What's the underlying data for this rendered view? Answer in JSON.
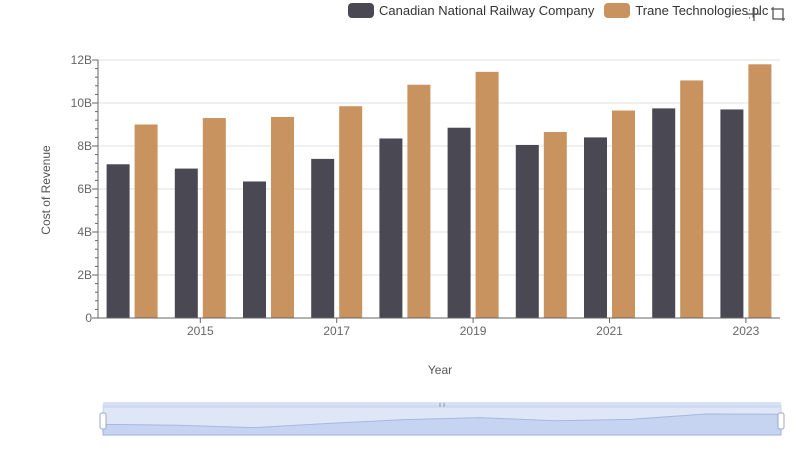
{
  "legend": [
    {
      "name": "Canadian National Railway Company",
      "color": "#4a4953"
    },
    {
      "name": "Trane Technologies plc",
      "color": "#c8935f"
    }
  ],
  "toolbox": {
    "zoom_icon": "zoom-icon",
    "restore_icon": "restore-icon"
  },
  "chart_data": {
    "type": "bar",
    "xlabel": "Year",
    "ylabel": "Cost of Revenue",
    "x": [
      2014,
      2015,
      2016,
      2017,
      2018,
      2019,
      2020,
      2021,
      2022,
      2023
    ],
    "x_tick_labels": [
      "2015",
      "2017",
      "2019",
      "2021",
      "2023"
    ],
    "y_tick_labels": [
      "0",
      "2B",
      "4B",
      "6B",
      "8B",
      "10B",
      "12B"
    ],
    "ylim": [
      0,
      12000000000
    ],
    "grid": true,
    "legend_position": "top-right",
    "series": [
      {
        "name": "Canadian National Railway Company",
        "color": "#4a4953",
        "values": [
          7150000000,
          6950000000,
          6350000000,
          7400000000,
          8350000000,
          8850000000,
          8050000000,
          8400000000,
          9750000000,
          9700000000
        ]
      },
      {
        "name": "Trane Technologies plc",
        "color": "#c8935f",
        "values": [
          9000000000,
          9300000000,
          9350000000,
          9850000000,
          10850000000,
          11450000000,
          8650000000,
          9650000000,
          11050000000,
          11800000000
        ]
      }
    ],
    "data_zoom": {
      "start_label": "",
      "end_label": ""
    }
  }
}
